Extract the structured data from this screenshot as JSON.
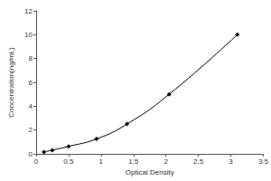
{
  "chart_data": {
    "type": "line",
    "x_label": "Optical Density",
    "y_label": "Concentration(ng/mL)",
    "x": [
      0.12,
      0.25,
      0.5,
      0.93,
      1.4,
      2.05,
      3.1
    ],
    "values": [
      0.156,
      0.312,
      0.625,
      1.25,
      2.5,
      5,
      10
    ],
    "color": "#000000",
    "marker": "diamond",
    "line_style": "solid",
    "xlim": [
      0,
      3.5
    ],
    "xticks": [
      0,
      0.5,
      1,
      1.5,
      2,
      2.5,
      3,
      3.5
    ],
    "ylim": [
      0,
      12
    ],
    "yticks": [
      0,
      2,
      4,
      6,
      8,
      10,
      12
    ],
    "grid": false
  }
}
